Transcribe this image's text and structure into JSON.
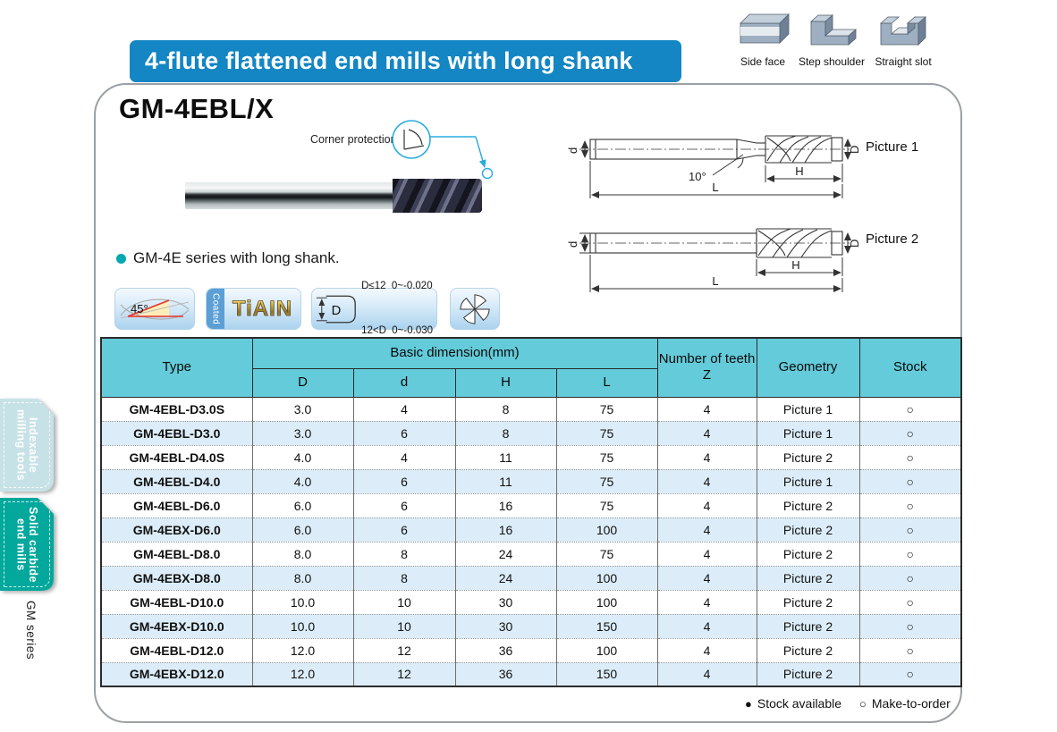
{
  "banner": {
    "title": "4-flute flattened end mills with long shank"
  },
  "workpiece_icons": [
    {
      "name": "side-face-icon",
      "label": "Side face"
    },
    {
      "name": "step-shoulder-icon",
      "label": "Step shoulder"
    },
    {
      "name": "straight-slot-icon",
      "label": "Straight slot"
    }
  ],
  "product": {
    "model": "GM-4EBL/X",
    "corner_callout": "Corner protection",
    "feature_bullet": "GM-4E series with long shank."
  },
  "drawings": {
    "dims": {
      "d": "d",
      "D": "D",
      "H": "H",
      "L": "L"
    },
    "angle": "10°",
    "picture1": "Picture 1",
    "picture2": "Picture 2"
  },
  "feature_icons": {
    "helix_angle": "45°",
    "coating_strip": "Coated",
    "coating_name": "TiAIN",
    "tolerance_symbol": "D",
    "tolerance_line1": "D≤12  0~-0.020",
    "tolerance_line2": "12<D  0~-0.030",
    "flute_icon": "4-flute cross-section"
  },
  "table": {
    "headers": {
      "type": "Type",
      "basic_dimension": "Basic dimension(mm)",
      "d_cap": "D",
      "d_low": "d",
      "h": "H",
      "l": "L",
      "teeth": "Number of teeth",
      "teeth_z": "Z",
      "geometry": "Geometry",
      "stock": "Stock"
    },
    "rows": [
      {
        "type": "GM-4EBL-D3.0S",
        "D": "3.0",
        "d": "4",
        "H": "8",
        "L": "75",
        "Z": "4",
        "geometry": "Picture 1",
        "stock": "make-to-order"
      },
      {
        "type": "GM-4EBL-D3.0",
        "D": "3.0",
        "d": "6",
        "H": "8",
        "L": "75",
        "Z": "4",
        "geometry": "Picture 1",
        "stock": "make-to-order"
      },
      {
        "type": "GM-4EBL-D4.0S",
        "D": "4.0",
        "d": "4",
        "H": "11",
        "L": "75",
        "Z": "4",
        "geometry": "Picture 2",
        "stock": "make-to-order"
      },
      {
        "type": "GM-4EBL-D4.0",
        "D": "4.0",
        "d": "6",
        "H": "11",
        "L": "75",
        "Z": "4",
        "geometry": "Picture 1",
        "stock": "make-to-order"
      },
      {
        "type": "GM-4EBL-D6.0",
        "D": "6.0",
        "d": "6",
        "H": "16",
        "L": "75",
        "Z": "4",
        "geometry": "Picture 2",
        "stock": "make-to-order"
      },
      {
        "type": "GM-4EBX-D6.0",
        "D": "6.0",
        "d": "6",
        "H": "16",
        "L": "100",
        "Z": "4",
        "geometry": "Picture 2",
        "stock": "make-to-order"
      },
      {
        "type": "GM-4EBL-D8.0",
        "D": "8.0",
        "d": "8",
        "H": "24",
        "L": "75",
        "Z": "4",
        "geometry": "Picture 2",
        "stock": "make-to-order"
      },
      {
        "type": "GM-4EBX-D8.0",
        "D": "8.0",
        "d": "8",
        "H": "24",
        "L": "100",
        "Z": "4",
        "geometry": "Picture 2",
        "stock": "make-to-order"
      },
      {
        "type": "GM-4EBL-D10.0",
        "D": "10.0",
        "d": "10",
        "H": "30",
        "L": "100",
        "Z": "4",
        "geometry": "Picture 2",
        "stock": "make-to-order"
      },
      {
        "type": "GM-4EBX-D10.0",
        "D": "10.0",
        "d": "10",
        "H": "30",
        "L": "150",
        "Z": "4",
        "geometry": "Picture 2",
        "stock": "make-to-order"
      },
      {
        "type": "GM-4EBL-D12.0",
        "D": "12.0",
        "d": "12",
        "H": "36",
        "L": "100",
        "Z": "4",
        "geometry": "Picture 2",
        "stock": "make-to-order"
      },
      {
        "type": "GM-4EBX-D12.0",
        "D": "12.0",
        "d": "12",
        "H": "36",
        "L": "150",
        "Z": "4",
        "geometry": "Picture 2",
        "stock": "make-to-order"
      }
    ]
  },
  "legend": {
    "available_symbol": "●",
    "available_label": "Stock available",
    "order_symbol": "○",
    "order_label": "Make-to-order"
  },
  "sidebar": {
    "tab_indexable_line1": "Indexable",
    "tab_indexable_line2": "milling tools",
    "tab_solid_line1": "Solid carbide",
    "tab_solid_line2": "end mills",
    "series": "GM series"
  },
  "colors": {
    "banner_blue": "#1386c3",
    "table_header_cyan": "#63cbd9",
    "row_alt_blue": "#dcedf9",
    "tab_active_teal": "#02a89c",
    "tab_inactive": "#c7e2e6",
    "callout_blue": "#29abe2",
    "bullet_teal": "#00a8b0"
  }
}
